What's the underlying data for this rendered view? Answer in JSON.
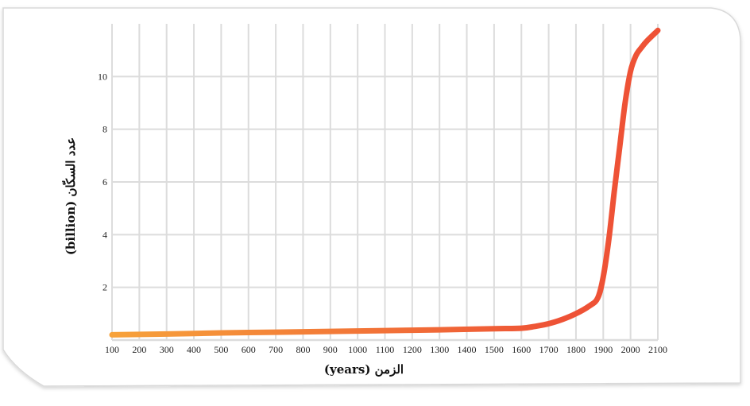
{
  "chart_data": {
    "type": "line",
    "xlabel": "الزمن (years)",
    "ylabel": "عدد السكّان (billion)",
    "x_ticks": [
      100,
      200,
      300,
      400,
      500,
      600,
      700,
      800,
      900,
      1000,
      1100,
      1200,
      1300,
      1400,
      1500,
      1600,
      1700,
      1800,
      1900,
      2000,
      2100
    ],
    "y_ticks": [
      2,
      4,
      6,
      8,
      10
    ],
    "xlim": [
      100,
      2100
    ],
    "ylim": [
      0,
      12
    ],
    "grid": true,
    "series": [
      {
        "x": [
          100,
          300,
          500,
          700,
          900,
          1100,
          1300,
          1500,
          1600,
          1650,
          1700,
          1750,
          1800,
          1850,
          1880,
          1900,
          1920,
          1940,
          1960,
          1980,
          2000,
          2020,
          2040,
          2060,
          2080,
          2100
        ],
        "values": [
          0.2,
          0.23,
          0.27,
          0.3,
          0.33,
          0.36,
          0.39,
          0.43,
          0.45,
          0.52,
          0.62,
          0.78,
          1.0,
          1.3,
          1.6,
          2.4,
          3.8,
          5.6,
          7.3,
          9.0,
          10.2,
          10.8,
          11.1,
          11.35,
          11.55,
          11.75
        ]
      }
    ],
    "colors": {
      "line_start": "#f7a23a",
      "line_end": "#ee5236",
      "grid": "#dcdcdc",
      "card_border": "#d9d9d9"
    }
  }
}
